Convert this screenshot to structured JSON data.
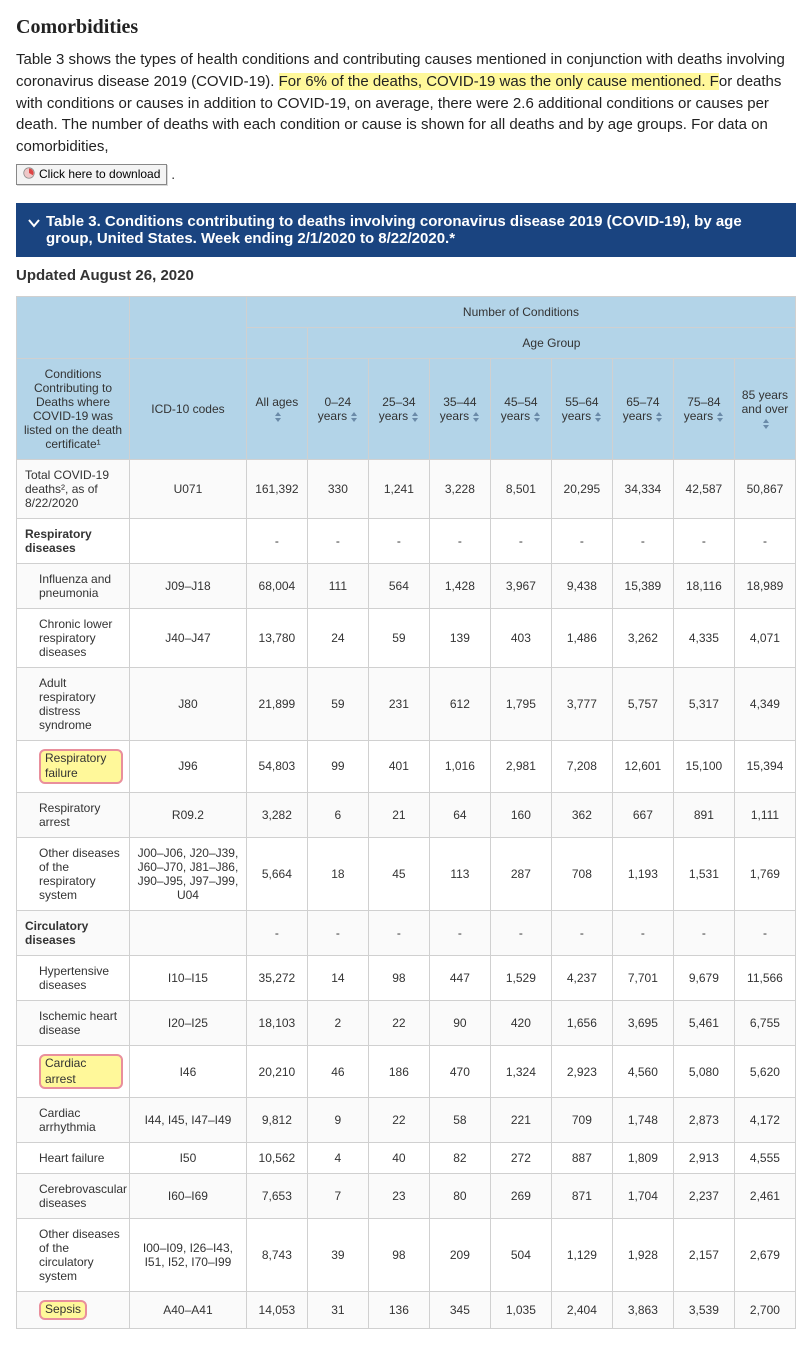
{
  "section_title": "Comorbidities",
  "intro": {
    "pre": "Table 3 shows the types of health conditions and contributing causes mentioned in conjunction with deaths involving coronavirus disease 2019 (COVID-19). ",
    "highlight": "For 6% of the deaths, COVID-19 was the only cause mentioned. F",
    "post": "or deaths with conditions or causes in addition to COVID-19, on average, there were 2.6 additional conditions or causes per death. The number of deaths with each condition or cause is shown for all deaths and by age groups. For data on comorbidities,"
  },
  "download_label": "Click here to download",
  "banner_title": "Table 3. Conditions contributing to deaths involving coronavirus disease 2019 (COVID-19), by age group, United States. Week ending 2/1/2020 to 8/22/2020.*",
  "updated_label": "Updated August 26, 2020",
  "colors": {
    "banner_bg": "#1a4480",
    "header_bg": "#b3d4e8",
    "highlight_bg": "#fff89a",
    "highlight_border": "#e98f9c"
  },
  "table": {
    "superheader_number": "Number of Conditions",
    "superheader_age": "Age Group",
    "col_conditions": "Conditions Contributing to Deaths where COVID-19 was listed on the death certificate¹",
    "col_icd": "ICD-10 codes",
    "age_cols": [
      "All ages",
      "0–24 years",
      "25–34 years",
      "35–44 years",
      "45–54 years",
      "55–64 years",
      "65–74 years",
      "75–84 years",
      "85 years and over"
    ],
    "rows": [
      {
        "type": "total",
        "label": "Total COVID-19 deaths², as of 8/22/2020",
        "icd": "U071",
        "vals": [
          "161,392",
          "330",
          "1,241",
          "3,228",
          "8,501",
          "20,295",
          "34,334",
          "42,587",
          "50,867"
        ]
      },
      {
        "type": "cat",
        "label": "Respiratory diseases",
        "icd": "",
        "vals": [
          "-",
          "-",
          "-",
          "-",
          "-",
          "-",
          "-",
          "-",
          "-"
        ]
      },
      {
        "type": "row",
        "label": "Influenza and pneumonia",
        "icd": "J09–J18",
        "vals": [
          "68,004",
          "111",
          "564",
          "1,428",
          "3,967",
          "9,438",
          "15,389",
          "18,116",
          "18,989"
        ]
      },
      {
        "type": "row",
        "label": "Chronic lower respiratory diseases",
        "icd": "J40–J47",
        "vals": [
          "13,780",
          "24",
          "59",
          "139",
          "403",
          "1,486",
          "3,262",
          "4,335",
          "4,071"
        ]
      },
      {
        "type": "row",
        "label": "Adult respiratory distress syndrome",
        "icd": "J80",
        "vals": [
          "21,899",
          "59",
          "231",
          "612",
          "1,795",
          "3,777",
          "5,757",
          "5,317",
          "4,349"
        ]
      },
      {
        "type": "row",
        "hl": true,
        "label": "Respiratory failure",
        "icd": "J96",
        "vals": [
          "54,803",
          "99",
          "401",
          "1,016",
          "2,981",
          "7,208",
          "12,601",
          "15,100",
          "15,394"
        ]
      },
      {
        "type": "row",
        "label": "Respiratory arrest",
        "icd": "R09.2",
        "vals": [
          "3,282",
          "6",
          "21",
          "64",
          "160",
          "362",
          "667",
          "891",
          "1,111"
        ]
      },
      {
        "type": "row",
        "label": "Other diseases of the respiratory system",
        "icd": "J00–J06, J20–J39, J60–J70, J81–J86, J90–J95, J97–J99, U04",
        "vals": [
          "5,664",
          "18",
          "45",
          "113",
          "287",
          "708",
          "1,193",
          "1,531",
          "1,769"
        ]
      },
      {
        "type": "cat",
        "label": "Circulatory diseases",
        "icd": "",
        "vals": [
          "-",
          "-",
          "-",
          "-",
          "-",
          "-",
          "-",
          "-",
          "-"
        ]
      },
      {
        "type": "row",
        "label": "Hypertensive diseases",
        "icd": "I10–I15",
        "vals": [
          "35,272",
          "14",
          "98",
          "447",
          "1,529",
          "4,237",
          "7,701",
          "9,679",
          "11,566"
        ]
      },
      {
        "type": "row",
        "label": "Ischemic heart disease",
        "icd": "I20–I25",
        "vals": [
          "18,103",
          "2",
          "22",
          "90",
          "420",
          "1,656",
          "3,695",
          "5,461",
          "6,755"
        ]
      },
      {
        "type": "row",
        "hl": true,
        "label": "Cardiac arrest",
        "icd": "I46",
        "vals": [
          "20,210",
          "46",
          "186",
          "470",
          "1,324",
          "2,923",
          "4,560",
          "5,080",
          "5,620"
        ]
      },
      {
        "type": "row",
        "label": "Cardiac arrhythmia",
        "icd": "I44, I45, I47–I49",
        "vals": [
          "9,812",
          "9",
          "22",
          "58",
          "221",
          "709",
          "1,748",
          "2,873",
          "4,172"
        ]
      },
      {
        "type": "row",
        "label": "Heart failure",
        "icd": "I50",
        "vals": [
          "10,562",
          "4",
          "40",
          "82",
          "272",
          "887",
          "1,809",
          "2,913",
          "4,555"
        ]
      },
      {
        "type": "row",
        "label": "Cerebrovascular diseases",
        "icd": "I60–I69",
        "vals": [
          "7,653",
          "7",
          "23",
          "80",
          "269",
          "871",
          "1,704",
          "2,237",
          "2,461"
        ]
      },
      {
        "type": "row",
        "label": "Other diseases of the circulatory system",
        "icd": "I00–I09, I26–I43, I51, I52, I70–I99",
        "vals": [
          "8,743",
          "39",
          "98",
          "209",
          "504",
          "1,129",
          "1,928",
          "2,157",
          "2,679"
        ]
      },
      {
        "type": "row",
        "hl": true,
        "label": "Sepsis",
        "icd": "A40–A41",
        "vals": [
          "14,053",
          "31",
          "136",
          "345",
          "1,035",
          "2,404",
          "3,863",
          "3,539",
          "2,700"
        ]
      }
    ]
  }
}
